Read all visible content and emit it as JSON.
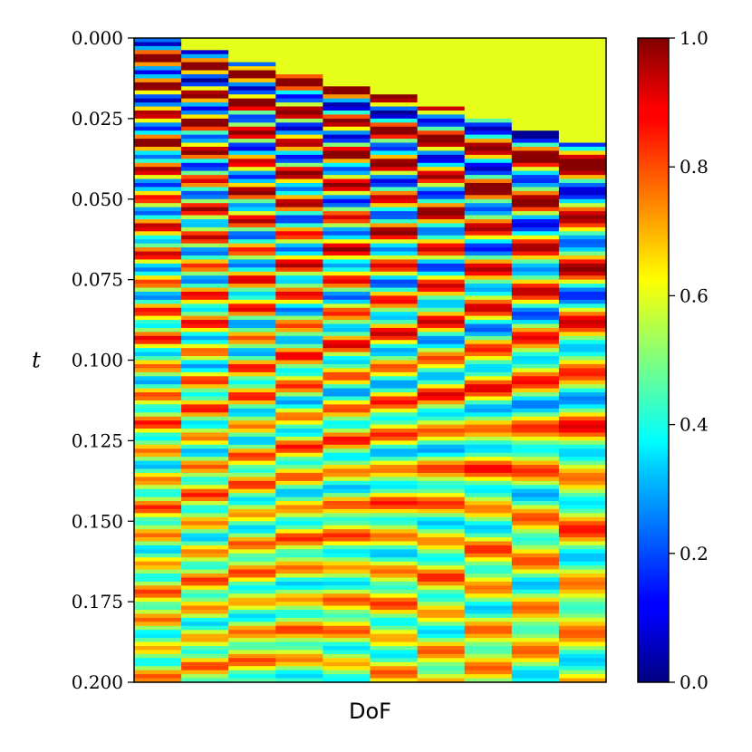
{
  "chart_data": {
    "type": "heatmap",
    "xlabel": "DoF",
    "ylabel": "t",
    "ylim": [
      0.0,
      0.2
    ],
    "y_axis_inverted": true,
    "y_ticks": [
      "0.000",
      "0.025",
      "0.050",
      "0.075",
      "0.100",
      "0.125",
      "0.150",
      "0.175",
      "0.200"
    ],
    "columns": 10,
    "colormap": "jet",
    "colorbar": {
      "range": [
        0.0,
        1.0
      ],
      "ticks": [
        "0.0",
        "0.2",
        "0.4",
        "0.6",
        "0.8",
        "1.0"
      ]
    },
    "x_ticks": [],
    "grid": false,
    "colors": {
      "background": "#ffffff",
      "frame": "#000000"
    }
  }
}
